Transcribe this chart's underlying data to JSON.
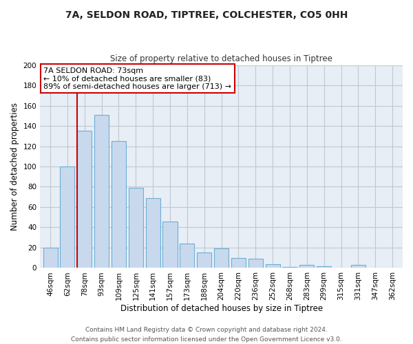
{
  "title": "7A, SELDON ROAD, TIPTREE, COLCHESTER, CO5 0HH",
  "subtitle": "Size of property relative to detached houses in Tiptree",
  "xlabel": "Distribution of detached houses by size in Tiptree",
  "ylabel": "Number of detached properties",
  "categories": [
    "46sqm",
    "62sqm",
    "78sqm",
    "93sqm",
    "109sqm",
    "125sqm",
    "141sqm",
    "157sqm",
    "173sqm",
    "188sqm",
    "204sqm",
    "220sqm",
    "236sqm",
    "252sqm",
    "268sqm",
    "283sqm",
    "299sqm",
    "315sqm",
    "331sqm",
    "347sqm",
    "362sqm"
  ],
  "values": [
    20,
    100,
    135,
    151,
    125,
    79,
    69,
    46,
    24,
    15,
    19,
    10,
    9,
    4,
    1,
    3,
    2,
    0,
    3,
    0,
    0
  ],
  "bar_color": "#c8d9ee",
  "bar_edge_color": "#6baed6",
  "marker_line_index": 2,
  "marker_line_color": "#cc0000",
  "annotation_text_line1": "7A SELDON ROAD: 73sqm",
  "annotation_text_line2": "← 10% of detached houses are smaller (83)",
  "annotation_text_line3": "89% of semi-detached houses are larger (713) →",
  "ylim": [
    0,
    200
  ],
  "yticks": [
    0,
    20,
    40,
    60,
    80,
    100,
    120,
    140,
    160,
    180,
    200
  ],
  "footer_line1": "Contains HM Land Registry data © Crown copyright and database right 2024.",
  "footer_line2": "Contains public sector information licensed under the Open Government Licence v3.0.",
  "bg_color": "#ffffff",
  "plot_bg_color": "#e8eef5",
  "grid_color": "#c0c8d0",
  "title_fontsize": 10,
  "subtitle_fontsize": 8.5,
  "xlabel_fontsize": 8.5,
  "ylabel_fontsize": 8.5,
  "tick_fontsize": 7.5,
  "annotation_fontsize": 8,
  "footer_fontsize": 6.5
}
